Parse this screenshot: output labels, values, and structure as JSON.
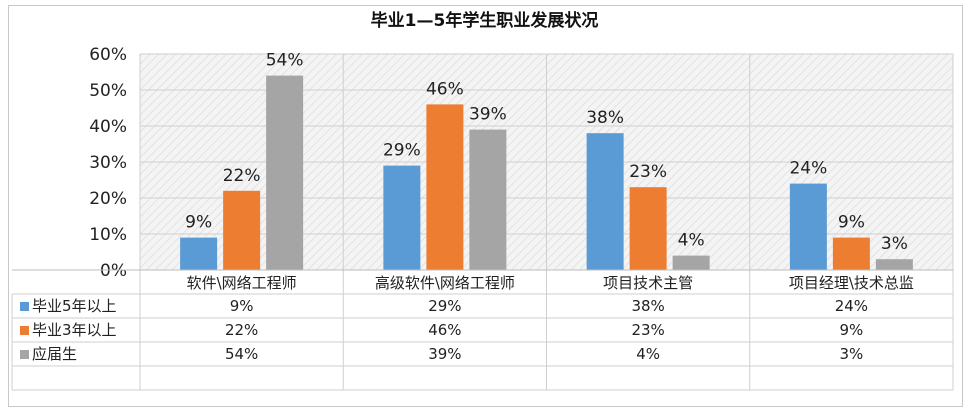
{
  "chart_data": {
    "type": "bar",
    "title": "毕业1—5年学生职业发展状况",
    "categories": [
      "软件\\网络工程师",
      "高级软件\\网络工程师",
      "项目技术主管",
      "项目经理\\技术总监"
    ],
    "series": [
      {
        "name": "毕业5年以上",
        "values": [
          9,
          29,
          38,
          24
        ],
        "color": "#5b9bd5"
      },
      {
        "name": "毕业3年以上",
        "values": [
          22,
          46,
          23,
          9
        ],
        "color": "#ed7d31"
      },
      {
        "name": "应届生",
        "values": [
          54,
          39,
          4,
          3
        ],
        "color": "#a5a5a5"
      }
    ],
    "y_ticks": [
      "0%",
      "10%",
      "20%",
      "30%",
      "40%",
      "50%",
      "60%"
    ],
    "ylim": [
      0,
      60
    ],
    "value_suffix": "%",
    "legend": "data-table",
    "grid": true
  }
}
